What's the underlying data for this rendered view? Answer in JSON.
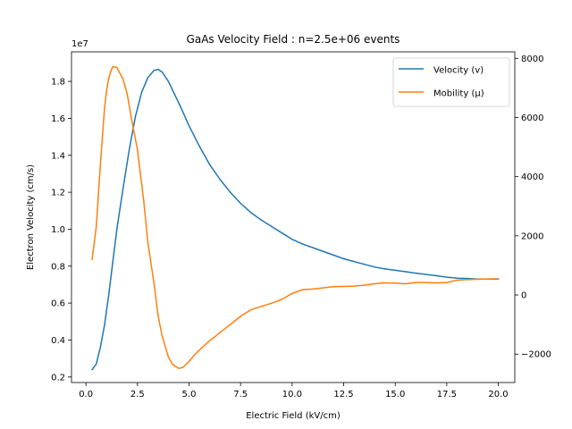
{
  "chart_data": {
    "type": "line",
    "title": "GaAs Velocity Field : n=2.5e+06 events",
    "xlabel": "Electric Field (kV/cm)",
    "ylabel_left": "Electron Velocity (cm/s)",
    "y_left_offset": "1e7",
    "xlim": [
      -0.7,
      20.8
    ],
    "ylim_left": [
      0.17,
      1.96
    ],
    "ylim_right": [
      -2960,
      8220
    ],
    "x_ticks": [
      0.0,
      2.5,
      5.0,
      7.5,
      10.0,
      12.5,
      15.0,
      17.5,
      20.0
    ],
    "x_tick_labels": [
      "0.0",
      "2.5",
      "5.0",
      "7.5",
      "10.0",
      "12.5",
      "15.0",
      "17.5",
      "20.0"
    ],
    "y_left_ticks": [
      0.2,
      0.4,
      0.6,
      0.8,
      1.0,
      1.2,
      1.4,
      1.6,
      1.8
    ],
    "y_left_tick_labels": [
      "0.2",
      "0.4",
      "0.6",
      "0.8",
      "1.0",
      "1.2",
      "1.4",
      "1.6",
      "1.8"
    ],
    "y_right_ticks": [
      -2000,
      0,
      2000,
      4000,
      6000,
      8000
    ],
    "y_right_tick_labels": [
      "−2000",
      "0",
      "2000",
      "4000",
      "6000",
      "8000"
    ],
    "legend_position": "top-right",
    "grid": false,
    "series": [
      {
        "name": "Velocity (v)",
        "axis": "left",
        "color": "#1f77b4",
        "x": [
          0.3,
          0.5,
          0.7,
          0.9,
          1.1,
          1.3,
          1.5,
          1.8,
          2.1,
          2.4,
          2.7,
          3.0,
          3.3,
          3.5,
          3.7,
          4.0,
          4.3,
          4.6,
          5.0,
          5.5,
          6.0,
          6.5,
          7.0,
          7.5,
          8.0,
          8.5,
          9.0,
          9.5,
          10.0,
          10.5,
          11.0,
          11.5,
          12.0,
          12.5,
          13.0,
          13.5,
          14.0,
          14.5,
          15.0,
          15.5,
          16.0,
          16.5,
          17.0,
          17.5,
          18.0,
          18.5,
          19.0,
          19.5,
          20.0
        ],
        "y": [
          0.24,
          0.27,
          0.36,
          0.48,
          0.64,
          0.82,
          1.0,
          1.22,
          1.43,
          1.61,
          1.74,
          1.82,
          1.86,
          1.865,
          1.85,
          1.8,
          1.73,
          1.66,
          1.56,
          1.45,
          1.35,
          1.27,
          1.2,
          1.14,
          1.09,
          1.05,
          1.015,
          0.98,
          0.945,
          0.92,
          0.9,
          0.88,
          0.86,
          0.84,
          0.825,
          0.81,
          0.795,
          0.785,
          0.778,
          0.77,
          0.762,
          0.755,
          0.748,
          0.74,
          0.735,
          0.733,
          0.73,
          0.73,
          0.73
        ]
      },
      {
        "name": "Mobility (μ)",
        "axis": "right",
        "color": "#ff7f0e",
        "x": [
          0.3,
          0.5,
          0.7,
          0.9,
          1.0,
          1.1,
          1.2,
          1.3,
          1.5,
          1.8,
          2.0,
          2.2,
          2.5,
          2.8,
          3.0,
          3.3,
          3.5,
          3.7,
          4.0,
          4.2,
          4.5,
          4.7,
          5.0,
          5.3,
          5.6,
          6.0,
          6.5,
          7.0,
          7.5,
          8.0,
          8.5,
          9.0,
          9.5,
          10.0,
          10.5,
          11.0,
          11.5,
          12.0,
          12.5,
          13.0,
          13.5,
          14.0,
          14.5,
          15.0,
          15.5,
          16.0,
          16.5,
          17.0,
          17.5,
          18.0,
          18.5,
          19.0,
          19.5,
          20.0
        ],
        "y": [
          1200,
          2300,
          4400,
          6300,
          6900,
          7300,
          7550,
          7720,
          7690,
          7300,
          6800,
          6000,
          4900,
          3200,
          1800,
          400,
          -700,
          -1400,
          -2100,
          -2350,
          -2480,
          -2450,
          -2250,
          -2000,
          -1800,
          -1550,
          -1270,
          -1000,
          -720,
          -500,
          -390,
          -280,
          -150,
          50,
          180,
          200,
          240,
          280,
          290,
          300,
          330,
          380,
          410,
          400,
          380,
          420,
          420,
          410,
          420,
          500,
          520,
          530,
          540,
          550
        ]
      }
    ]
  }
}
